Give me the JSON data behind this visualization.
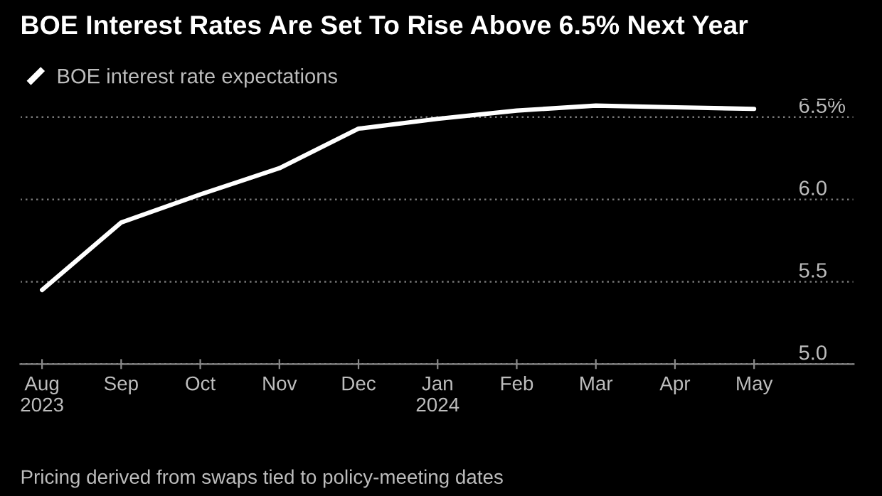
{
  "chart_data": {
    "type": "line",
    "title": "BOE Interest Rates Are Set To Rise Above 6.5% Next Year",
    "categories": [
      "Aug\n2023",
      "Sep",
      "Oct",
      "Nov",
      "Dec",
      "Jan\n2024",
      "Feb",
      "Mar",
      "Apr",
      "May"
    ],
    "series": [
      {
        "name": "BOE interest rate expectations",
        "color": "#ffffff",
        "values": [
          5.45,
          5.86,
          6.03,
          6.19,
          6.43,
          6.49,
          6.54,
          6.57,
          6.56,
          6.55
        ]
      }
    ],
    "ylim": [
      5.0,
      6.6
    ],
    "yticks": [
      {
        "value": 5.0,
        "label": "5.0"
      },
      {
        "value": 5.5,
        "label": "5.5"
      },
      {
        "value": 6.0,
        "label": "6.0"
      },
      {
        "value": 6.5,
        "label": "6.5%"
      }
    ],
    "grid": "y",
    "legend": "top left",
    "marker": "none",
    "line_style": "solid",
    "annotations": [
      "Pricing derived from swaps tied to policy-meeting dates"
    ]
  }
}
